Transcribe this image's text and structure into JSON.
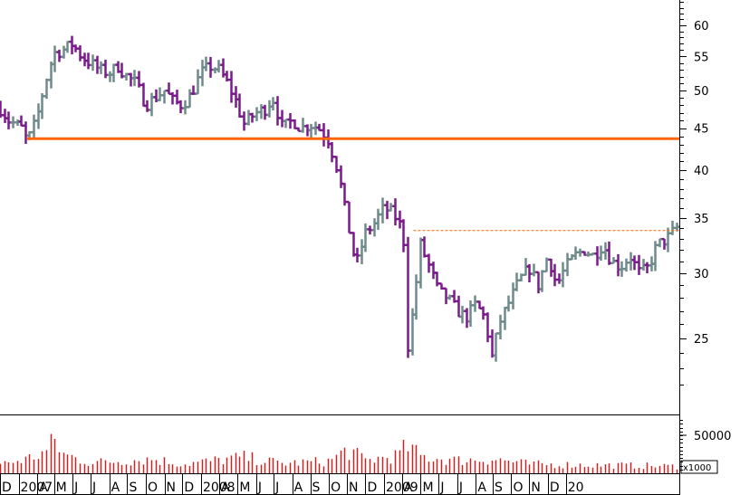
{
  "chart_data": {
    "type": "bar",
    "subtype": "ohlc-price-and-volume",
    "price_axis": {
      "scale": "log",
      "tick_labels": [
        "60",
        "55",
        "50",
        "45",
        "40",
        "35",
        "30",
        "25"
      ],
      "ticks": [
        60,
        55,
        50,
        45,
        40,
        35,
        30,
        25
      ],
      "range": [
        21.5,
        66
      ],
      "position": "right"
    },
    "volume_axis": {
      "tick_labels": [
        "50000"
      ],
      "ticks": [
        50000
      ],
      "unit_label": "x1000",
      "range": [
        0,
        75000
      ]
    },
    "time_axis": {
      "labels": [
        "D",
        "2007",
        "A",
        "M",
        "J",
        "J",
        "A",
        "S",
        "O",
        "N",
        "D",
        "2008",
        "A",
        "M",
        "J",
        "J",
        "A",
        "S",
        "O",
        "N",
        "D",
        "2009",
        "A",
        "M",
        "J",
        "J",
        "A",
        "S",
        "O",
        "N",
        "D",
        "20"
      ],
      "range": [
        "2006-12-01",
        "2010-01-06"
      ]
    },
    "support_line": {
      "value": 43.7,
      "color": "#ff6600"
    },
    "resistance_line": {
      "value": 33.8,
      "from": "2008-10-20",
      "color": "#ff6600",
      "style": "dotted"
    },
    "colors": {
      "up": "#6f8a8a",
      "down": "#7b1a8c",
      "volume": "#cc2222",
      "frame": "#000000"
    },
    "anchors": [
      [
        "2006-12-01",
        47.5
      ],
      [
        "2006-12-15",
        46.0
      ],
      [
        "2007-01-05",
        45.0
      ],
      [
        "2007-01-15",
        43.3
      ],
      [
        "2007-01-30",
        46.0
      ],
      [
        "2007-02-15",
        51.5
      ],
      [
        "2007-02-28",
        55.5
      ],
      [
        "2007-03-15",
        56.0
      ],
      [
        "2007-03-31",
        57.0
      ],
      [
        "2007-04-15",
        55.0
      ],
      [
        "2007-04-30",
        54.0
      ],
      [
        "2007-05-15",
        53.0
      ],
      [
        "2007-05-31",
        52.5
      ],
      [
        "2007-06-15",
        53.5
      ],
      [
        "2007-06-30",
        52.0
      ],
      [
        "2007-07-15",
        51.0
      ],
      [
        "2007-07-31",
        48.0
      ],
      [
        "2007-08-15",
        49.0
      ],
      [
        "2007-08-31",
        50.0
      ],
      [
        "2007-09-15",
        48.5
      ],
      [
        "2007-09-30",
        48.0
      ],
      [
        "2007-10-15",
        49.5
      ],
      [
        "2007-10-31",
        52.5
      ],
      [
        "2007-11-15",
        53.5
      ],
      [
        "2007-11-30",
        53.0
      ],
      [
        "2007-12-15",
        51.0
      ],
      [
        "2007-12-31",
        48.0
      ],
      [
        "2008-01-10",
        45.5
      ],
      [
        "2008-01-31",
        47.0
      ],
      [
        "2008-02-15",
        47.5
      ],
      [
        "2008-02-28",
        49.0
      ],
      [
        "2008-03-15",
        45.0
      ],
      [
        "2008-03-31",
        46.0
      ],
      [
        "2008-04-15",
        45.0
      ],
      [
        "2008-04-30",
        45.5
      ],
      [
        "2008-05-15",
        45.0
      ],
      [
        "2008-05-31",
        43.5
      ],
      [
        "2008-06-15",
        40.0
      ],
      [
        "2008-06-30",
        35.0
      ],
      [
        "2008-07-15",
        30.5
      ],
      [
        "2008-07-31",
        33.5
      ],
      [
        "2008-08-15",
        34.5
      ],
      [
        "2008-08-31",
        36.0
      ],
      [
        "2008-09-15",
        35.5
      ],
      [
        "2008-09-30",
        34.0
      ],
      [
        "2008-10-05",
        32.0
      ],
      [
        "2008-10-10",
        24.5
      ],
      [
        "2008-10-20",
        27.5
      ],
      [
        "2008-10-31",
        32.5
      ],
      [
        "2008-11-15",
        30.5
      ],
      [
        "2008-11-30",
        28.5
      ],
      [
        "2008-12-15",
        28.0
      ],
      [
        "2008-12-31",
        27.0
      ],
      [
        "2009-01-15",
        26.5
      ],
      [
        "2009-01-31",
        27.5
      ],
      [
        "2009-02-15",
        26.5
      ],
      [
        "2009-02-28",
        23.5
      ],
      [
        "2009-03-10",
        26.0
      ],
      [
        "2009-03-31",
        28.0
      ],
      [
        "2009-04-15",
        29.5
      ],
      [
        "2009-04-30",
        30.5
      ],
      [
        "2009-05-15",
        29.0
      ],
      [
        "2009-05-31",
        31.5
      ],
      [
        "2009-06-15",
        29.0
      ],
      [
        "2009-06-30",
        30.5
      ],
      [
        "2009-07-15",
        31.5
      ],
      [
        "2009-07-31",
        32.0
      ],
      [
        "2009-08-15",
        31.5
      ],
      [
        "2009-08-31",
        32.5
      ],
      [
        "2009-09-15",
        31.0
      ],
      [
        "2009-09-30",
        30.5
      ],
      [
        "2009-10-15",
        31.5
      ],
      [
        "2009-10-31",
        30.0
      ],
      [
        "2009-11-15",
        30.5
      ],
      [
        "2009-11-30",
        32.5
      ],
      [
        "2009-12-15",
        33.0
      ],
      [
        "2009-12-31",
        34.0
      ],
      [
        "2010-01-06",
        34.5
      ]
    ],
    "volume_anchors": [
      [
        "2006-12-01",
        12000
      ],
      [
        "2007-01-15",
        19000
      ],
      [
        "2007-02-15",
        28000
      ],
      [
        "2007-03-01",
        44000
      ],
      [
        "2007-03-15",
        25000
      ],
      [
        "2007-05-01",
        14000
      ],
      [
        "2007-08-10",
        19000
      ],
      [
        "2007-10-01",
        12000
      ],
      [
        "2008-01-10",
        21000
      ],
      [
        "2008-03-15",
        13000
      ],
      [
        "2008-06-01",
        16000
      ],
      [
        "2008-07-01",
        31000
      ],
      [
        "2008-08-01",
        17000
      ],
      [
        "2008-09-20",
        23000
      ],
      [
        "2008-10-10",
        35000
      ],
      [
        "2008-11-01",
        22000
      ],
      [
        "2009-01-01",
        17000
      ],
      [
        "2009-03-01",
        19000
      ],
      [
        "2009-05-01",
        12000
      ],
      [
        "2009-08-01",
        11000
      ],
      [
        "2009-11-01",
        10000
      ],
      [
        "2010-01-06",
        9000
      ]
    ]
  }
}
